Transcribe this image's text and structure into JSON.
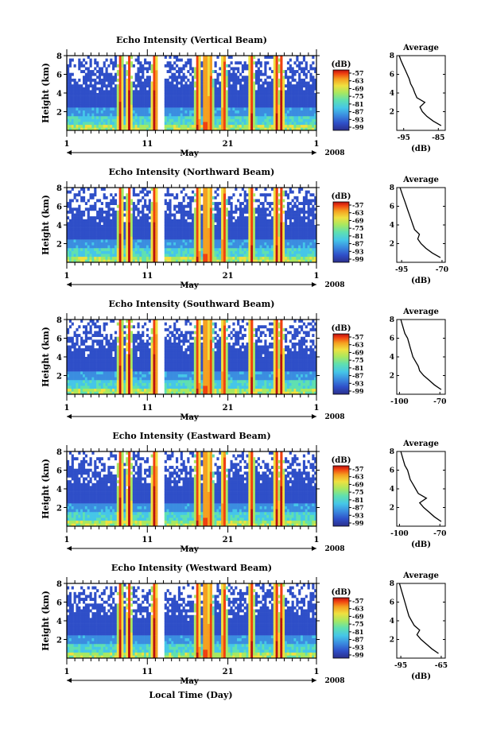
{
  "colorbar_unit": "(dB)",
  "colorbar_ticks": [
    "-57",
    "-63",
    "-69",
    "-75",
    "-81",
    "-87",
    "-93",
    "-99"
  ],
  "colormap": [
    "#2b2f8c",
    "#2f4fc8",
    "#3b8de0",
    "#45c6e8",
    "#5fe0b0",
    "#a8e860",
    "#f0e040",
    "#f5a020",
    "#f04010",
    "#b81010"
  ],
  "month_label": "May",
  "year_label": "2008",
  "x_tick_labels": [
    "1",
    "11",
    "21",
    "1"
  ],
  "y_tick_labels": [
    "2",
    "4",
    "6",
    "8"
  ],
  "height_axis_label": "Height (km)",
  "avg_title": "Average",
  "avg_xlabel": "(dB)",
  "bottom_xlabel": "Local Time (Day)",
  "chart_data": [
    {
      "type": "heatmap",
      "title": "Echo Intensity (Vertical Beam)",
      "ylabel": "Height (km)",
      "ylim": [
        0,
        8
      ],
      "xlim": [
        "May 1",
        "Jun 1"
      ],
      "clim": [
        -99,
        -57
      ],
      "profile": {
        "title": "Average",
        "xlabel": "(dB)",
        "xticks": [
          "-95",
          "-85"
        ],
        "xlim": [
          -97,
          -83
        ],
        "height": [
          0.5,
          1.0,
          1.5,
          2.0,
          2.5,
          3.0,
          3.5,
          4.0,
          4.5,
          5.0,
          5.5,
          6.0,
          6.5,
          7.0,
          7.5,
          8.0
        ],
        "values": [
          -84.2,
          -86.5,
          -88.3,
          -89.6,
          -90.3,
          -88.9,
          -91.2,
          -91.8,
          -92.3,
          -93.0,
          -93.4,
          -94.0,
          -94.6,
          -95.2,
          -95.8,
          -96.3
        ]
      }
    },
    {
      "type": "heatmap",
      "title": "Echo Intensity (Northward Beam)",
      "ylabel": "Height (km)",
      "ylim": [
        0,
        8
      ],
      "xlim": [
        "May 1",
        "Jun 1"
      ],
      "clim": [
        -99,
        -57
      ],
      "profile": {
        "title": "Average",
        "xlabel": "(dB)",
        "xticks": [
          "-95",
          "-70"
        ],
        "xlim": [
          -98,
          -68
        ],
        "height": [
          0.5,
          1.0,
          1.5,
          2.0,
          2.5,
          3.0,
          3.5,
          4.0,
          4.5,
          5.0,
          5.5,
          6.0,
          6.5,
          7.0,
          7.5,
          8.0
        ],
        "values": [
          -71,
          -76,
          -80,
          -83,
          -85,
          -84,
          -87,
          -88,
          -89,
          -90,
          -91,
          -92,
          -93,
          -94,
          -95,
          -96
        ]
      }
    },
    {
      "type": "heatmap",
      "title": "Echo Intensity (Southward Beam)",
      "ylabel": "Height (km)",
      "ylim": [
        0,
        8
      ],
      "xlim": [
        "May 1",
        "Jun 1"
      ],
      "clim": [
        -99,
        -57
      ],
      "profile": {
        "title": "Average",
        "xlabel": "",
        "xticks": [
          "-100",
          "-70"
        ],
        "xlim": [
          -102,
          -66
        ],
        "height": [
          0.5,
          1.0,
          1.5,
          2.0,
          2.5,
          3.0,
          3.5,
          4.0,
          4.5,
          5.0,
          5.5,
          6.0,
          6.5,
          7.0,
          7.5,
          8.0
        ],
        "values": [
          -69,
          -74,
          -78,
          -82,
          -85,
          -86,
          -88,
          -90,
          -91,
          -92,
          -93,
          -94,
          -96,
          -97,
          -98,
          -99
        ]
      }
    },
    {
      "type": "heatmap",
      "title": "Echo Intensity (Eastward Beam)",
      "ylabel": "Height (km)",
      "ylim": [
        0,
        8
      ],
      "xlim": [
        "May 1",
        "Jun 1"
      ],
      "clim": [
        -99,
        -57
      ],
      "profile": {
        "title": "Average",
        "xlabel": "(dB)",
        "xticks": [
          "-100",
          "-70"
        ],
        "xlim": [
          -102,
          -66
        ],
        "height": [
          0.5,
          1.0,
          1.5,
          2.0,
          2.5,
          3.0,
          3.5,
          4.0,
          4.5,
          5.0,
          5.5,
          6.0,
          6.5,
          7.0,
          7.5,
          8.0
        ],
        "values": [
          -69,
          -74,
          -78,
          -82,
          -85,
          -80,
          -86,
          -88,
          -90,
          -92,
          -93,
          -94,
          -96,
          -97,
          -98,
          -99
        ]
      }
    },
    {
      "type": "heatmap",
      "title": "Echo Intensity (Westward Beam)",
      "ylabel": "Height (km)",
      "ylim": [
        0,
        8
      ],
      "xlim": [
        "May 1",
        "Jun 1"
      ],
      "clim": [
        -99,
        -57
      ],
      "profile": {
        "title": "Average",
        "xlabel": "(dB)",
        "xticks": [
          "-95",
          "-65"
        ],
        "xlim": [
          -98,
          -62
        ],
        "height": [
          0.5,
          1.0,
          1.5,
          2.0,
          2.5,
          3.0,
          3.5,
          4.0,
          4.5,
          5.0,
          5.5,
          6.0,
          6.5,
          7.0,
          7.5,
          8.0
        ],
        "values": [
          -67,
          -72,
          -76,
          -80,
          -83,
          -81,
          -85,
          -87,
          -89,
          -90,
          -91,
          -92,
          -93,
          -94,
          -95,
          -96
        ]
      }
    }
  ]
}
